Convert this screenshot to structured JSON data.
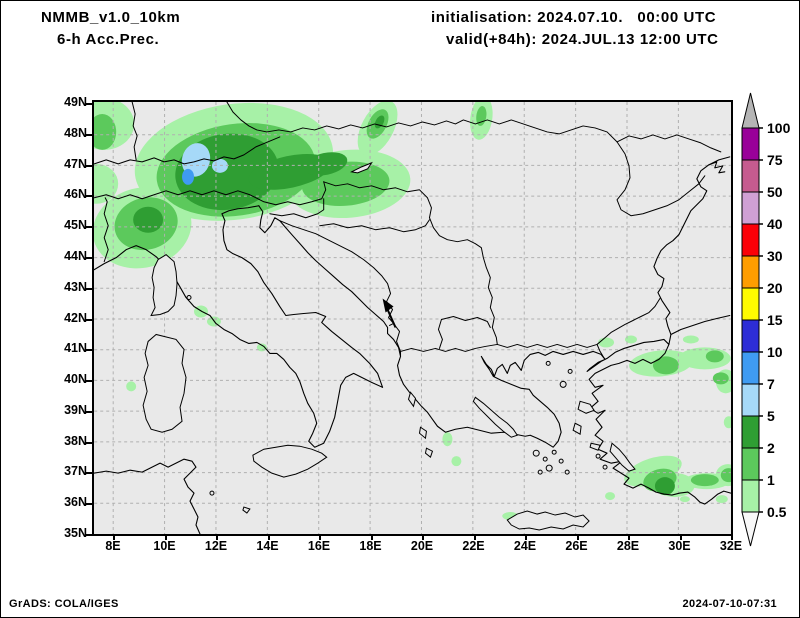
{
  "header": {
    "model": "NMMB_v1.0_10km",
    "product": "6-h Acc.Prec.",
    "initialisation": "initialisation: 2024.07.10.   00:00 UTC",
    "valid": "valid(+84h): 2024.JUL.13 12:00 UTC"
  },
  "axes": {
    "lat_labels": [
      "49N",
      "48N",
      "47N",
      "46N",
      "45N",
      "44N",
      "43N",
      "42N",
      "41N",
      "40N",
      "39N",
      "38N",
      "37N",
      "36N",
      "35N"
    ],
    "lon_labels": [
      "8E",
      "10E",
      "12E",
      "14E",
      "16E",
      "18E",
      "20E",
      "22E",
      "24E",
      "26E",
      "28E",
      "30E",
      "32E"
    ]
  },
  "legend": {
    "boundaries": [
      "100",
      "75",
      "50",
      "40",
      "30",
      "20",
      "15",
      "10",
      "7",
      "5",
      "2",
      "1",
      "0.5"
    ],
    "segment_colors": [
      "#990099",
      "#c65b8f",
      "#d0a0d4",
      "#fb0007",
      "#ff9d00",
      "#fffb00",
      "#2d2dd6",
      "#3f9bf2",
      "#a6d9f8",
      "#2f9e33",
      "#5cc95c",
      "#a7f1a7"
    ],
    "above_color": "#b5b5b5",
    "below_color": "#f8f8f8"
  },
  "map": {
    "background": "#e9e9e9",
    "grid_color": "#b0b0b0",
    "precip_regions": [
      {
        "area": "Alps / N Italy / Slovenia",
        "max_band": "7-10"
      },
      {
        "area": "NW Italy (Liguria-Piedmont)",
        "max_band": "2-5"
      },
      {
        "area": "18-19E 48-49N streak",
        "max_band": "1-2"
      },
      {
        "area": "22E 48-49N streak",
        "max_band": "2-5"
      },
      {
        "area": "NW Turkey / Marmara",
        "max_band": "1-2"
      },
      {
        "area": "SW Turkey coast",
        "max_band": "2-5"
      }
    ]
  },
  "footer": {
    "left": "GrADS: COLA/IGES",
    "right": "2024-07-10-07:31"
  }
}
